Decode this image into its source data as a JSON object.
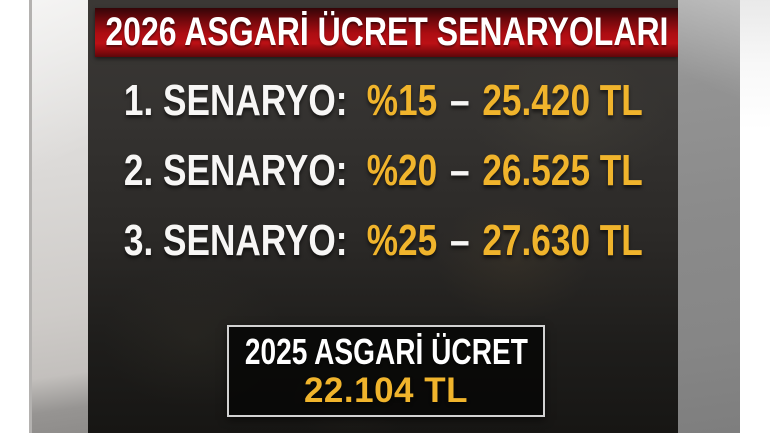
{
  "banner": {
    "title": "2026 ASGARİ ÜCRET SENARYOLARI"
  },
  "scenarios": [
    {
      "label": "1. SENARYO:",
      "percent": "%15",
      "separator": "–",
      "amount": "25.420 TL"
    },
    {
      "label": "2. SENARYO:",
      "percent": "%20",
      "separator": "–",
      "amount": "26.525 TL"
    },
    {
      "label": "3. SENARYO:",
      "percent": "%25",
      "separator": "–",
      "amount": "27.630 TL"
    }
  ],
  "wage_box": {
    "title": "2025 ASGARİ ÜCRET",
    "amount": "22.104 TL"
  },
  "colors": {
    "banner_red": "#ad0d12",
    "highlight_gold": "#f0b42c",
    "text_white": "#ffffff",
    "panel_dark": "#2b2927"
  }
}
